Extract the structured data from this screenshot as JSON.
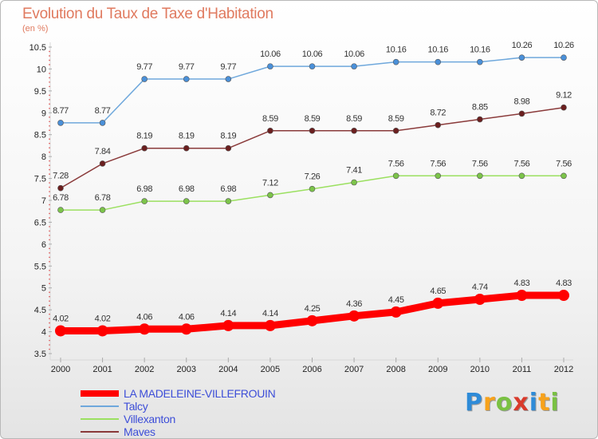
{
  "title": "Evolution du Taux de Taxe d'Habitation",
  "subtitle": "(en %)",
  "logo": {
    "text": "Proxiti",
    "letters": [
      "P",
      "r",
      "o",
      "x",
      "i",
      "t",
      "i"
    ],
    "colors": [
      "#2e8bd8",
      "#f7a21b",
      "#7ac143",
      "#d93a2b",
      "#2e8bd8",
      "#f7a21b",
      "#7ac143"
    ]
  },
  "chart_data": {
    "type": "line",
    "x": [
      "2000",
      "2001",
      "2002",
      "2003",
      "2004",
      "2005",
      "2006",
      "2007",
      "2008",
      "2009",
      "2010",
      "2011",
      "2012"
    ],
    "ylim": [
      3.5,
      10.5
    ],
    "yticks": [
      "3.5",
      "4",
      "4.5",
      "5",
      "5.5",
      "6",
      "6.5",
      "7",
      "7.5",
      "8",
      "8.5",
      "9",
      "9.5",
      "10",
      "10.5"
    ],
    "grid": false,
    "legend_position": "bottom-left",
    "series": [
      {
        "name": "LA MADELEINE-VILLEFROUIN",
        "color": "#ff0000",
        "marker_color": "#ff0000",
        "values": [
          4.02,
          4.02,
          4.06,
          4.06,
          4.14,
          4.14,
          4.25,
          4.36,
          4.45,
          4.65,
          4.74,
          4.83,
          4.83
        ],
        "labels": [
          "4.02",
          "4.02",
          "4.06",
          "4.06",
          "4.14",
          "4.14",
          "4.25",
          "4.36",
          "4.45",
          "4.65",
          "4.74",
          "4.83",
          "4.83"
        ]
      },
      {
        "name": "Talcy",
        "color": "#6fa8dc",
        "marker_color": "#4a90d9",
        "values": [
          8.77,
          8.77,
          9.77,
          9.77,
          9.77,
          10.06,
          10.06,
          10.06,
          10.16,
          10.16,
          10.16,
          10.26,
          10.26
        ],
        "labels": [
          "8.77",
          "8.77",
          "9.77",
          "9.77",
          "9.77",
          "10.06",
          "10.06",
          "10.06",
          "10.16",
          "10.16",
          "10.16",
          "10.26",
          "10.26"
        ]
      },
      {
        "name": "Villexanton",
        "color": "#9be060",
        "marker_color": "#7cc44a",
        "values": [
          6.78,
          6.78,
          6.98,
          6.98,
          6.98,
          7.12,
          7.26,
          7.41,
          7.56,
          7.56,
          7.56,
          7.56,
          7.56
        ],
        "labels": [
          "6.78",
          "6.78",
          "6.98",
          "6.98",
          "6.98",
          "7.12",
          "7.26",
          "7.41",
          "7.56",
          "7.56",
          "7.56",
          "7.56",
          "7.56"
        ]
      },
      {
        "name": "Maves",
        "color": "#8a3a3a",
        "marker_color": "#6b1f1f",
        "values": [
          7.28,
          7.84,
          8.19,
          8.19,
          8.19,
          8.59,
          8.59,
          8.59,
          8.59,
          8.72,
          8.85,
          8.98,
          9.12
        ],
        "labels": [
          "7.28",
          "7.84",
          "8.19",
          "8.19",
          "8.19",
          "8.59",
          "8.59",
          "8.59",
          "8.59",
          "8.72",
          "8.85",
          "8.98",
          "9.12"
        ]
      }
    ]
  }
}
